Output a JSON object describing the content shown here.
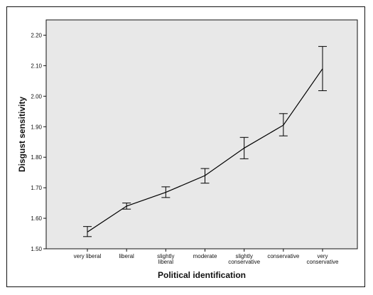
{
  "chart_data": {
    "type": "line",
    "title": "",
    "xlabel": "Political identification",
    "ylabel": "Disgust sensitivity",
    "ylim": [
      1.5,
      2.25
    ],
    "yticks": [
      "1.50",
      "1.60",
      "1.70",
      "1.80",
      "1.90",
      "2.00",
      "2.10",
      "2.20"
    ],
    "categories": [
      [
        "very liberal"
      ],
      [
        "liberal"
      ],
      [
        "slightly",
        "liberal"
      ],
      [
        "moderate"
      ],
      [
        "slightly",
        "conservative"
      ],
      [
        "conservative"
      ],
      [
        "very",
        "conservative"
      ]
    ],
    "series": [
      {
        "values": [
          1.555,
          1.64,
          1.685,
          1.74,
          1.83,
          1.905,
          2.09
        ],
        "error_low": [
          1.54,
          1.63,
          1.668,
          1.715,
          1.795,
          1.87,
          2.018
        ],
        "error_high": [
          1.573,
          1.65,
          1.703,
          1.763,
          1.865,
          1.943,
          2.163
        ]
      }
    ],
    "plot_background": "#e8e8e8",
    "line_color": "#000000",
    "grid": false
  }
}
